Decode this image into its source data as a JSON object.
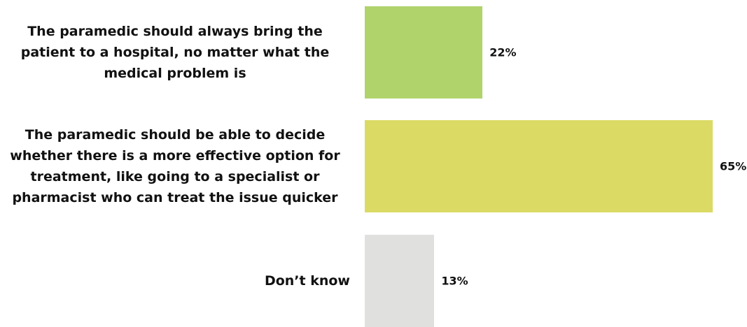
{
  "chart_data": {
    "type": "bar",
    "orientation": "horizontal",
    "categories": [
      "The paramedic should always bring the patient to a hospital, no matter what the medical problem is",
      "The paramedic should be able to decide whether there is a more effective option for treatment, like going to a specialist or pharmacist who can treat the issue quicker",
      "Don’t know"
    ],
    "category_lines": [
      [
        "The paramedic should always bring the",
        "patient to a hospital, no matter what the",
        "medical problem is"
      ],
      [
        "The paramedic should be able to decide",
        "whether there is a more effective option for",
        "treatment, like going to a specialist or",
        "pharmacist who can treat the issue quicker"
      ],
      [
        "Don’t know"
      ]
    ],
    "values": [
      22,
      65,
      13
    ],
    "value_labels": [
      "22%",
      "65%",
      "13%"
    ],
    "colors": [
      "#b0d36c",
      "#dada65",
      "#e0e1df"
    ],
    "xlim": [
      0,
      65
    ],
    "grid": false,
    "legend": "none"
  }
}
